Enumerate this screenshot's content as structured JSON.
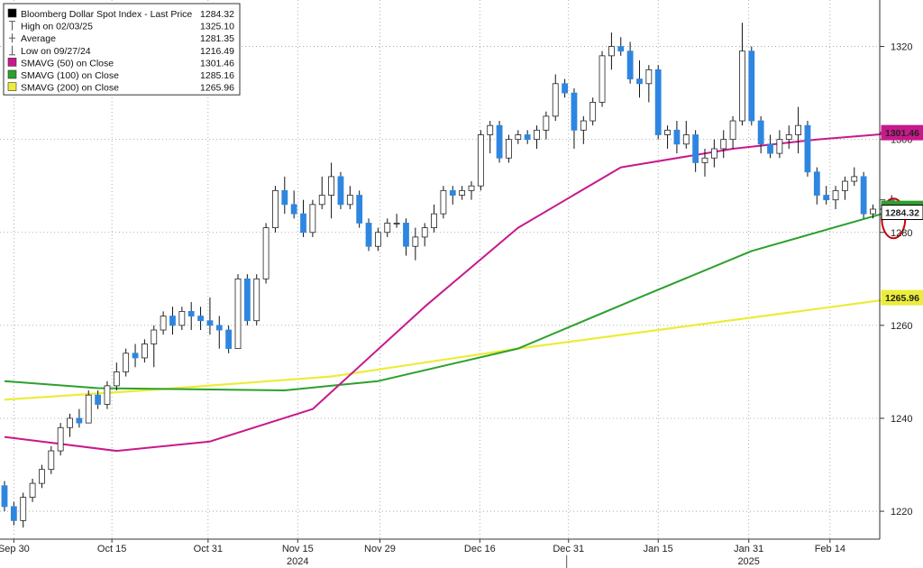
{
  "chart_data": {
    "type": "candlestick",
    "legend": {
      "placement": "top-left",
      "rows": [
        {
          "label": "Bloomberg Dollar Spot Index - Last Price",
          "value": "1284.32",
          "marker": "box",
          "color": "#000000"
        },
        {
          "label": "High on 02/03/25",
          "value": "1325.10",
          "marker": "high"
        },
        {
          "label": "Average",
          "value": "1281.35",
          "marker": "avg"
        },
        {
          "label": "Low on 09/27/24",
          "value": "1216.49",
          "marker": "low"
        },
        {
          "label": "SMAVG (50)  on Close",
          "value": "1301.46",
          "marker": "box",
          "color": "#c8198c"
        },
        {
          "label": "SMAVG (100)  on Close",
          "value": "1285.16",
          "marker": "box",
          "color": "#2ca02c"
        },
        {
          "label": "SMAVG (200)  on Close",
          "value": "1265.96",
          "marker": "box",
          "color": "#ecec3a"
        }
      ]
    },
    "y_axis": {
      "position": "right",
      "ylim": [
        1214,
        1330
      ],
      "ticks": [
        "1220",
        "1240",
        "1260",
        "1280",
        "1300",
        "1320"
      ]
    },
    "x_axis": {
      "ticks": [
        "Sep 30",
        "Oct 15",
        "Oct 31",
        "Nov 15",
        "Nov 29",
        "Dec 16",
        "Dec 31",
        "Jan 15",
        "Jan 31",
        "Feb 14"
      ],
      "years": [
        "2024",
        "2025"
      ]
    },
    "grid": {
      "horizontal": true,
      "vertical": true,
      "style": "dotted"
    },
    "colors": {
      "up": "#ffffff",
      "down": "#2f86e0",
      "wick": "#111111"
    },
    "candles": [
      [
        1225.5,
        1226.5,
        1220,
        1221
      ],
      [
        1221,
        1222,
        1217,
        1218
      ],
      [
        1218,
        1224,
        1216.5,
        1223
      ],
      [
        1223,
        1227,
        1222,
        1226
      ],
      [
        1226,
        1230,
        1225,
        1229
      ],
      [
        1229,
        1234,
        1228,
        1233
      ],
      [
        1233,
        1239,
        1232,
        1238
      ],
      [
        1238,
        1241,
        1236,
        1240
      ],
      [
        1240,
        1242,
        1238,
        1239
      ],
      [
        1239,
        1246,
        1239,
        1245
      ],
      [
        1245,
        1246,
        1242,
        1243
      ],
      [
        1243,
        1248,
        1242,
        1247
      ],
      [
        1247,
        1252,
        1246,
        1250
      ],
      [
        1250,
        1255,
        1249,
        1254
      ],
      [
        1254,
        1256,
        1251,
        1253
      ],
      [
        1253,
        1257,
        1252,
        1256
      ],
      [
        1256,
        1260,
        1251,
        1259
      ],
      [
        1259,
        1263,
        1258,
        1262
      ],
      [
        1262,
        1264,
        1258,
        1260
      ],
      [
        1260,
        1264,
        1259,
        1263
      ],
      [
        1263,
        1265,
        1259,
        1262
      ],
      [
        1262,
        1264,
        1259,
        1261
      ],
      [
        1261,
        1266,
        1258,
        1260
      ],
      [
        1260,
        1262,
        1255,
        1259
      ],
      [
        1259,
        1260,
        1254,
        1255
      ],
      [
        1255,
        1271,
        1255,
        1270
      ],
      [
        1270,
        1271,
        1260,
        1261
      ],
      [
        1261,
        1271,
        1260,
        1270
      ],
      [
        1270,
        1282,
        1269,
        1281
      ],
      [
        1281,
        1290,
        1280,
        1289
      ],
      [
        1289,
        1292,
        1284,
        1286
      ],
      [
        1286,
        1289,
        1283,
        1284
      ],
      [
        1284,
        1287,
        1279,
        1280
      ],
      [
        1280,
        1287,
        1279,
        1286
      ],
      [
        1286,
        1292,
        1285,
        1288
      ],
      [
        1288,
        1295,
        1283,
        1292
      ],
      [
        1292,
        1293,
        1285,
        1286
      ],
      [
        1286,
        1290,
        1285,
        1288
      ],
      [
        1288,
        1289,
        1281,
        1282
      ],
      [
        1282,
        1283,
        1276,
        1277
      ],
      [
        1277,
        1281,
        1276,
        1280
      ],
      [
        1280,
        1283,
        1279,
        1282
      ],
      [
        1282,
        1284,
        1281,
        1282
      ],
      [
        1282,
        1283,
        1275,
        1277
      ],
      [
        1277,
        1281,
        1274,
        1279
      ],
      [
        1279,
        1282,
        1277,
        1281
      ],
      [
        1281,
        1286,
        1280,
        1284
      ],
      [
        1284,
        1290,
        1283,
        1289
      ],
      [
        1289,
        1290,
        1286,
        1288
      ],
      [
        1288,
        1290,
        1287,
        1289
      ],
      [
        1289,
        1291,
        1287,
        1290
      ],
      [
        1290,
        1302,
        1289,
        1301
      ],
      [
        1301,
        1304,
        1297,
        1303
      ],
      [
        1303,
        1304,
        1295,
        1296
      ],
      [
        1296,
        1301,
        1295,
        1300
      ],
      [
        1300,
        1302,
        1299,
        1301
      ],
      [
        1301,
        1302,
        1299,
        1300
      ],
      [
        1300,
        1303,
        1298,
        1302
      ],
      [
        1302,
        1306,
        1300,
        1305
      ],
      [
        1305,
        1314,
        1304,
        1312
      ],
      [
        1312,
        1313,
        1309,
        1310
      ],
      [
        1310,
        1311,
        1298,
        1302
      ],
      [
        1302,
        1305,
        1299,
        1304
      ],
      [
        1304,
        1309,
        1303,
        1308
      ],
      [
        1308,
        1319,
        1307,
        1318
      ],
      [
        1318,
        1323,
        1315,
        1320
      ],
      [
        1320,
        1322,
        1318,
        1319
      ],
      [
        1319,
        1321,
        1312,
        1313
      ],
      [
        1313,
        1317,
        1309,
        1312
      ],
      [
        1312,
        1316,
        1308,
        1315
      ],
      [
        1315,
        1316,
        1300,
        1301
      ],
      [
        1301,
        1303,
        1298,
        1302
      ],
      [
        1302,
        1304,
        1297,
        1299
      ],
      [
        1299,
        1304,
        1298,
        1301
      ],
      [
        1301,
        1302,
        1293,
        1295
      ],
      [
        1295,
        1298,
        1292,
        1296
      ],
      [
        1296,
        1300,
        1294,
        1298
      ],
      [
        1298,
        1302,
        1296,
        1300
      ],
      [
        1300,
        1305,
        1298,
        1304
      ],
      [
        1304,
        1325.1,
        1303,
        1319
      ],
      [
        1319,
        1320,
        1303,
        1304
      ],
      [
        1304,
        1305,
        1297,
        1299
      ],
      [
        1299,
        1301,
        1296,
        1297
      ],
      [
        1297,
        1302,
        1296,
        1300
      ],
      [
        1300,
        1303,
        1298,
        1301
      ],
      [
        1301,
        1307,
        1297,
        1303
      ],
      [
        1303,
        1304,
        1292,
        1293
      ],
      [
        1293,
        1294,
        1286,
        1288
      ],
      [
        1288,
        1290,
        1286,
        1287
      ],
      [
        1287,
        1290,
        1285,
        1289
      ],
      [
        1289,
        1292,
        1287,
        1291
      ],
      [
        1291,
        1294,
        1290,
        1292
      ],
      [
        1292,
        1293,
        1283,
        1284
      ],
      [
        1284,
        1286,
        1283,
        1285
      ],
      [
        1285,
        1287,
        1282,
        1287
      ],
      [
        1287,
        1288,
        1283.5,
        1284.32
      ]
    ],
    "sma50": [
      [
        0,
        1236
      ],
      [
        12,
        1233
      ],
      [
        22,
        1235
      ],
      [
        33,
        1242
      ],
      [
        45,
        1264
      ],
      [
        55,
        1281
      ],
      [
        66,
        1294
      ],
      [
        78,
        1298
      ],
      [
        87,
        1300
      ],
      [
        96,
        1301.46
      ]
    ],
    "sma100": [
      [
        0,
        1248
      ],
      [
        10,
        1246.5
      ],
      [
        30,
        1246
      ],
      [
        40,
        1248
      ],
      [
        55,
        1255
      ],
      [
        68,
        1266
      ],
      [
        80,
        1276
      ],
      [
        96,
        1285.16
      ]
    ],
    "sma200": [
      [
        0,
        1244
      ],
      [
        15,
        1246
      ],
      [
        35,
        1249
      ],
      [
        55,
        1255
      ],
      [
        70,
        1259
      ],
      [
        85,
        1263
      ],
      [
        96,
        1265.96
      ]
    ],
    "value_labels": [
      {
        "text": "1301.46",
        "color": "#c8198c"
      },
      {
        "text": "1285.16",
        "color": "#2ca02c"
      },
      {
        "text": "1284.32",
        "color": "#000000"
      },
      {
        "text": "1265.96",
        "color": "#ecec3a"
      }
    ],
    "annotation": {
      "shape": "ellipse",
      "color": "#cc0000",
      "target": "last candle"
    }
  }
}
